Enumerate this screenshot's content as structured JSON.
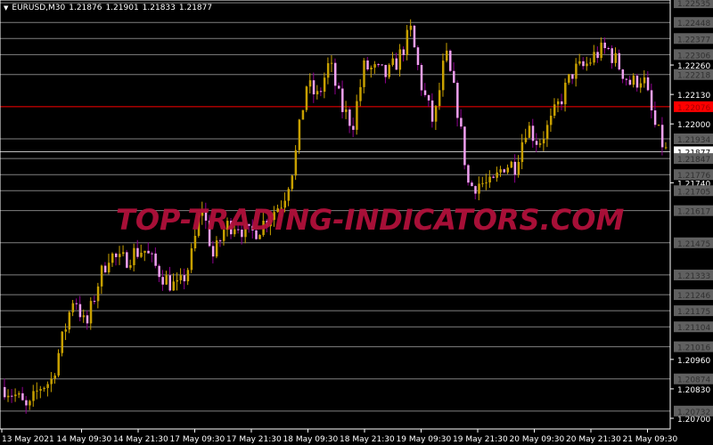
{
  "header": {
    "symbol_timeframe": "EURUSD,M30",
    "open": "1.21876",
    "high": "1.21901",
    "low": "1.21833",
    "close": "1.21877"
  },
  "watermark": "TOP-TRADING-INDICATORS.COM",
  "colors": {
    "background": "#000000",
    "bull": "#c8a000",
    "bear_body": "#f0a0f0",
    "bear_wick": "#900090",
    "level_line": "#808080",
    "red_level": "#ff0000",
    "axis": "#ffffff"
  },
  "price_axis": {
    "ticks": [
      "1.22260",
      "1.22130",
      "1.22000",
      "1.21740",
      "1.20960",
      "1.20830",
      "1.20700"
    ],
    "level_labels": [
      {
        "price": "1.22535",
        "kind": "gray"
      },
      {
        "price": "1.22448",
        "kind": "gray"
      },
      {
        "price": "1.22377",
        "kind": "gray"
      },
      {
        "price": "1.22306",
        "kind": "gray"
      },
      {
        "price": "1.22218",
        "kind": "gray"
      },
      {
        "price": "1.22076",
        "kind": "red"
      },
      {
        "price": "1.21934",
        "kind": "gray"
      },
      {
        "price": "1.21877",
        "kind": "current"
      },
      {
        "price": "1.21847",
        "kind": "gray"
      },
      {
        "price": "1.21776",
        "kind": "gray"
      },
      {
        "price": "1.21705",
        "kind": "gray"
      },
      {
        "price": "1.21617",
        "kind": "gray"
      },
      {
        "price": "1.21475",
        "kind": "gray"
      },
      {
        "price": "1.21333",
        "kind": "gray"
      },
      {
        "price": "1.21246",
        "kind": "gray"
      },
      {
        "price": "1.21175",
        "kind": "gray"
      },
      {
        "price": "1.21104",
        "kind": "gray"
      },
      {
        "price": "1.21016",
        "kind": "gray"
      },
      {
        "price": "1.20874",
        "kind": "gray"
      },
      {
        "price": "1.20732",
        "kind": "gray"
      }
    ]
  },
  "time_axis": [
    "13 May 2021",
    "14 May 09:30",
    "14 May 21:30",
    "17 May 09:30",
    "17 May 21:30",
    "18 May 09:30",
    "18 May 21:30",
    "19 May 09:30",
    "19 May 21:30",
    "20 May 09:30",
    "20 May 21:30",
    "21 May 09:30"
  ],
  "chart_data": {
    "type": "candlestick",
    "approx_close_path": [
      1.20838,
      1.20798,
      1.20731,
      1.20838,
      1.20865,
      1.21054,
      1.2125,
      1.21093,
      1.2129,
      1.21427,
      1.21388,
      1.21427,
      1.21447,
      1.21368,
      1.21309,
      1.2127,
      1.21388,
      1.21643,
      1.21407,
      1.21545,
      1.21565,
      1.21506,
      1.21545,
      1.21604,
      1.21663,
      1.2184,
      1.22174,
      1.22115,
      1.22272,
      1.22076,
      1.21997,
      1.22252,
      1.22233,
      1.22213,
      1.22292,
      1.2241,
      1.22154,
      1.21997,
      1.22311,
      1.22076,
      1.21722,
      1.21741,
      1.21722,
      1.2182,
      1.2182,
      1.21997,
      1.21918,
      1.21997,
      1.22115,
      1.22233,
      1.22252,
      1.22311,
      1.22331,
      1.22252,
      1.22174,
      1.22213,
      1.21997,
      1.21877
    ],
    "ylim": [
      1.2066,
      1.2254
    ]
  }
}
